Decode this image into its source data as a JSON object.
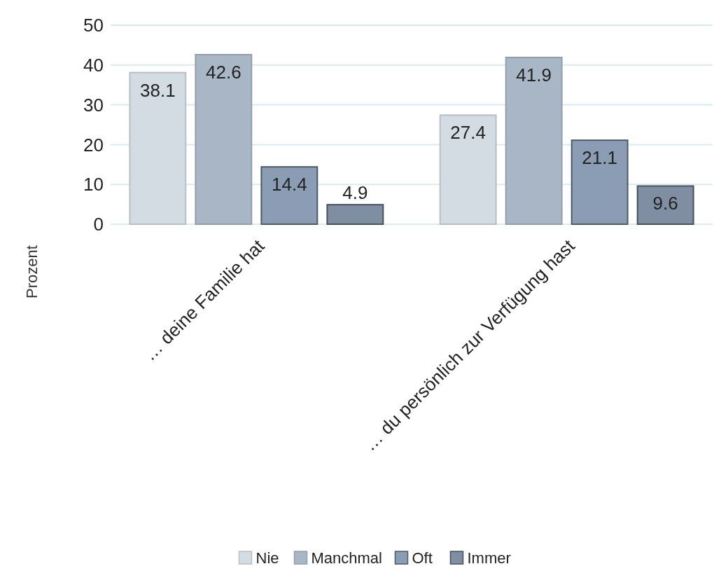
{
  "chart_data": {
    "type": "bar",
    "ylabel": "Prozent",
    "categories": [
      "… deine Familie hat",
      "… du persönlich zur Verfügung hast"
    ],
    "series": [
      {
        "name": "Nie",
        "color": "#d3dbe3",
        "values": [
          38.1,
          27.4
        ]
      },
      {
        "name": "Manchmal",
        "color": "#a9b6c6",
        "values": [
          42.6,
          41.9
        ]
      },
      {
        "name": "Oft",
        "color": "#8a9db5",
        "values": [
          14.4,
          21.1
        ]
      },
      {
        "name": "Immer",
        "color": "#7f8ea3",
        "values": [
          4.9,
          9.6
        ]
      }
    ],
    "ylim": [
      0,
      50
    ],
    "yticks": [
      0,
      10,
      20,
      30,
      40,
      50
    ],
    "grid": "y",
    "legend": "bottom",
    "data_labels": true
  }
}
